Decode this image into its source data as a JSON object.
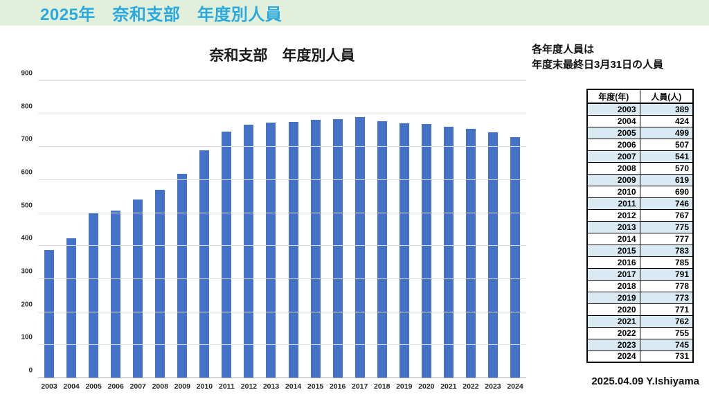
{
  "banner": {
    "title": "2025年　奈和支部　年度別人員"
  },
  "note": {
    "line1": "各年度人員は",
    "line2": "年度末最終日3月31日の人員"
  },
  "signature": "2025.04.09 Y.Ishiyama",
  "chart_data": {
    "type": "bar",
    "title": "奈和支部　年度別人員",
    "categories": [
      "2003",
      "2004",
      "2005",
      "2006",
      "2007",
      "2008",
      "2009",
      "2010",
      "2011",
      "2012",
      "2013",
      "2014",
      "2015",
      "2016",
      "2017",
      "2018",
      "2019",
      "2020",
      "2021",
      "2022",
      "2023",
      "2024"
    ],
    "values": [
      389,
      424,
      499,
      507,
      541,
      570,
      619,
      690,
      746,
      767,
      775,
      777,
      783,
      785,
      791,
      778,
      773,
      771,
      762,
      755,
      745,
      731
    ],
    "xlabel": "",
    "ylabel": "",
    "ylim": [
      0,
      900
    ],
    "ytick_step": 100,
    "grid": true,
    "legend": false
  },
  "table": {
    "headers": [
      "年度(年)",
      "人員(人)"
    ],
    "rows": [
      [
        "2003",
        "389"
      ],
      [
        "2004",
        "424"
      ],
      [
        "2005",
        "499"
      ],
      [
        "2006",
        "507"
      ],
      [
        "2007",
        "541"
      ],
      [
        "2008",
        "570"
      ],
      [
        "2009",
        "619"
      ],
      [
        "2010",
        "690"
      ],
      [
        "2011",
        "746"
      ],
      [
        "2012",
        "767"
      ],
      [
        "2013",
        "775"
      ],
      [
        "2014",
        "777"
      ],
      [
        "2015",
        "783"
      ],
      [
        "2016",
        "785"
      ],
      [
        "2017",
        "791"
      ],
      [
        "2018",
        "778"
      ],
      [
        "2019",
        "773"
      ],
      [
        "2020",
        "771"
      ],
      [
        "2021",
        "762"
      ],
      [
        "2022",
        "755"
      ],
      [
        "2023",
        "745"
      ],
      [
        "2024",
        "731"
      ]
    ]
  },
  "colors": {
    "banner_bg": "#e2efda",
    "banner_text": "#29a9e0",
    "bar": "#4472c4",
    "gridline": "#dcdcdc",
    "axis_line": "#a6a6a6",
    "table_alt_row": "#daeaf3"
  }
}
